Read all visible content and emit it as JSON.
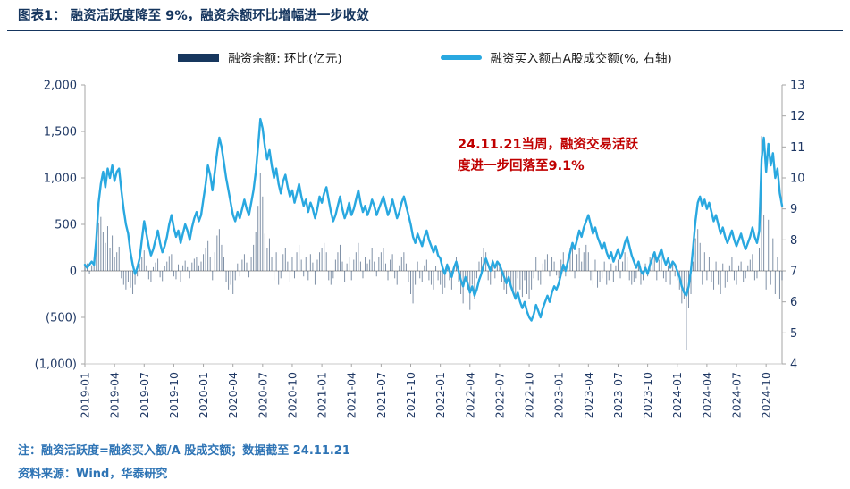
{
  "header": {
    "title": "图表1： 融资活跃度降至 9%，融资余额环比增幅进一步收敛"
  },
  "legend": [
    {
      "label": "融资余额: 环比(亿元)",
      "swatch": "bar",
      "color": "#17375e"
    },
    {
      "label": "融资买入额占A股成交额(%, 右轴)",
      "swatch": "line",
      "color": "#29a8e0"
    }
  ],
  "annotation": {
    "line1": "24.11.21当周，融资交易活跃",
    "line2": "度进一步回落至9.1%",
    "color": "#c00000"
  },
  "footnotes": {
    "note": "注：融资活跃度=融资买入额/A 股成交额；数据截至 24.11.21",
    "source": "资料来源：Wind，华泰研究"
  },
  "chart_data": {
    "type": "bar+line combo",
    "frequency": "weekly",
    "x_tick_interval": 13,
    "x_tick_labels": [
      "2019-01",
      "2019-04",
      "2019-07",
      "2019-10",
      "2020-01",
      "2020-04",
      "2020-07",
      "2020-10",
      "2021-01",
      "2021-04",
      "2021-07",
      "2021-10",
      "2022-01",
      "2022-04",
      "2022-07",
      "2022-10",
      "2023-01",
      "2023-04",
      "2023-07",
      "2023-10",
      "2024-01",
      "2024-04",
      "2024-07",
      "2024-10"
    ],
    "left_axis": {
      "min": -1000,
      "max": 2000,
      "tick_values": [
        2000,
        1500,
        1000,
        500,
        0,
        -500,
        -1000
      ],
      "tick_labels": [
        "2,000",
        "1,500",
        "1,000",
        "500",
        "0",
        "(500)",
        "(1,000)"
      ]
    },
    "right_axis": {
      "min": 4,
      "max": 13,
      "tick_values": [
        13,
        12,
        11,
        10,
        9,
        8,
        7,
        6,
        5,
        4
      ],
      "tick_labels": [
        "13",
        "12",
        "11",
        "10",
        "9",
        "8",
        "7",
        "6",
        "5",
        "4"
      ]
    },
    "series": [
      {
        "name": "融资余额: 环比(亿元)",
        "type": "bar",
        "axis": "left",
        "color": "#17375e",
        "values": [
          50,
          80,
          -30,
          60,
          120,
          350,
          520,
          580,
          420,
          300,
          480,
          250,
          380,
          150,
          200,
          260,
          -80,
          -150,
          -200,
          -120,
          -180,
          -250,
          -150,
          -60,
          80,
          150,
          220,
          60,
          -90,
          -120,
          40,
          90,
          130,
          -70,
          -110,
          50,
          100,
          160,
          180,
          -60,
          -90,
          70,
          -120,
          60,
          110,
          40,
          -80,
          90,
          130,
          150,
          60,
          100,
          180,
          250,
          320,
          150,
          -100,
          200,
          380,
          450,
          280,
          150,
          -120,
          -200,
          -150,
          -250,
          -100,
          80,
          -60,
          120,
          180,
          90,
          -70,
          150,
          280,
          420,
          700,
          1050,
          800,
          400,
          250,
          350,
          150,
          -100,
          200,
          -150,
          -80,
          180,
          250,
          100,
          -120,
          150,
          -80,
          200,
          280,
          120,
          -60,
          150,
          -100,
          180,
          90,
          -150,
          120,
          200,
          250,
          300,
          200,
          -100,
          -150,
          -80,
          120,
          200,
          280,
          100,
          -120,
          80,
          150,
          -100,
          120,
          200,
          300,
          100,
          -80,
          150,
          80,
          120,
          250,
          100,
          -60,
          150,
          200,
          250,
          80,
          -100,
          120,
          180,
          -80,
          -150,
          60,
          150,
          200,
          80,
          -120,
          -250,
          -350,
          -150,
          100,
          -80,
          -120,
          60,
          120,
          -100,
          -150,
          -200,
          50,
          -100,
          -150,
          -250,
          -180,
          80,
          -100,
          -200,
          60,
          150,
          -120,
          -250,
          -350,
          -100,
          -200,
          -420,
          -150,
          -300,
          -80,
          100,
          150,
          250,
          200,
          -100,
          -150,
          120,
          -80,
          100,
          60,
          -120,
          -200,
          -250,
          -100,
          -180,
          -250,
          -300,
          -80,
          -200,
          -280,
          -100,
          -250,
          -300,
          -200,
          -80,
          150,
          -100,
          -150,
          80,
          120,
          180,
          -60,
          150,
          100,
          -50,
          -80,
          120,
          200,
          -60,
          150,
          250,
          300,
          -80,
          180,
          250,
          100,
          200,
          280,
          200,
          -100,
          -150,
          120,
          -180,
          -120,
          -80,
          100,
          -150,
          -100,
          80,
          -120,
          60,
          120,
          -80,
          100,
          200,
          150,
          -100,
          -150,
          -120,
          -80,
          60,
          -150,
          -100,
          80,
          -60,
          150,
          180,
          200,
          -100,
          120,
          150,
          -80,
          -120,
          60,
          -150,
          80,
          -60,
          -100,
          -200,
          -350,
          -300,
          -850,
          -400,
          -250,
          100,
          350,
          450,
          300,
          -150,
          200,
          -100,
          150,
          -120,
          -200,
          100,
          -150,
          -250,
          80,
          -180,
          -120,
          60,
          150,
          -100,
          -150,
          60,
          100,
          -120,
          -80,
          60,
          120,
          180,
          -100,
          -80,
          250,
          1450,
          600,
          -200,
          550,
          -150,
          350,
          -250,
          150,
          -300,
          -100
        ]
      },
      {
        "name": "融资买入额占A股成交额(%, 右轴)",
        "type": "line",
        "axis": "right",
        "color": "#29a8e0",
        "values": [
          7.2,
          7.1,
          7.2,
          7.3,
          7.2,
          8.0,
          9.2,
          9.8,
          10.2,
          9.7,
          10.3,
          10.0,
          10.4,
          9.9,
          10.2,
          10.3,
          9.6,
          9.0,
          8.5,
          8.2,
          7.6,
          7.2,
          6.9,
          7.1,
          7.4,
          8.0,
          8.6,
          8.2,
          7.8,
          7.5,
          7.7,
          8.0,
          8.3,
          7.9,
          7.6,
          7.8,
          8.1,
          8.5,
          8.8,
          8.4,
          8.1,
          8.3,
          7.9,
          8.2,
          8.5,
          8.3,
          8.0,
          8.4,
          8.7,
          8.9,
          8.6,
          8.8,
          9.3,
          9.8,
          10.4,
          10.1,
          9.6,
          10.2,
          10.8,
          11.3,
          11.0,
          10.5,
          10.0,
          9.6,
          9.2,
          8.8,
          8.6,
          8.9,
          8.7,
          9.0,
          9.3,
          9.0,
          8.8,
          9.2,
          9.6,
          10.2,
          11.0,
          11.9,
          11.6,
          11.0,
          10.6,
          10.9,
          10.4,
          10.0,
          10.3,
          9.8,
          9.5,
          9.9,
          10.1,
          9.7,
          9.4,
          9.6,
          9.2,
          9.5,
          9.8,
          9.4,
          9.1,
          9.3,
          8.9,
          9.2,
          9.0,
          8.7,
          9.0,
          9.4,
          9.2,
          9.5,
          9.7,
          9.3,
          8.9,
          8.6,
          8.8,
          9.1,
          9.4,
          9.0,
          8.7,
          8.9,
          9.2,
          8.8,
          9.0,
          9.3,
          9.6,
          9.2,
          8.9,
          9.1,
          8.8,
          9.0,
          9.3,
          9.1,
          8.8,
          9.0,
          9.2,
          9.4,
          9.1,
          8.8,
          9.0,
          9.3,
          9.0,
          8.7,
          8.9,
          9.2,
          9.4,
          9.1,
          8.8,
          8.5,
          8.1,
          7.9,
          8.2,
          8.0,
          7.8,
          8.1,
          8.3,
          8.0,
          7.8,
          7.6,
          7.8,
          7.5,
          7.4,
          7.1,
          6.9,
          7.2,
          7.0,
          6.8,
          7.1,
          7.3,
          7.0,
          6.7,
          6.5,
          6.8,
          6.6,
          6.3,
          6.5,
          6.2,
          6.4,
          6.7,
          6.9,
          7.2,
          7.4,
          7.2,
          7.0,
          7.3,
          7.1,
          7.3,
          7.2,
          7.0,
          6.8,
          6.6,
          6.8,
          6.5,
          6.3,
          6.1,
          6.3,
          6.0,
          5.8,
          6.0,
          5.7,
          5.5,
          5.4,
          5.6,
          5.9,
          5.7,
          5.5,
          5.8,
          6.0,
          6.2,
          6.0,
          6.3,
          6.5,
          6.4,
          6.6,
          6.9,
          7.2,
          7.0,
          7.3,
          7.6,
          7.9,
          7.7,
          8.0,
          8.3,
          8.1,
          8.4,
          8.6,
          8.8,
          8.5,
          8.2,
          8.4,
          8.1,
          7.9,
          7.7,
          7.9,
          7.6,
          7.4,
          7.6,
          7.3,
          7.5,
          7.7,
          7.4,
          7.6,
          7.9,
          8.1,
          7.8,
          7.5,
          7.3,
          7.1,
          7.3,
          7.0,
          6.9,
          7.1,
          6.9,
          7.2,
          7.4,
          7.6,
          7.3,
          7.5,
          7.7,
          7.4,
          7.2,
          7.4,
          7.1,
          7.3,
          7.2,
          7.0,
          6.8,
          6.5,
          6.3,
          6.2,
          6.5,
          7.0,
          7.8,
          8.6,
          9.2,
          9.4,
          9.1,
          9.3,
          9.0,
          9.2,
          8.9,
          8.6,
          8.8,
          8.5,
          8.2,
          8.4,
          8.1,
          7.9,
          8.1,
          8.3,
          8.0,
          7.8,
          8.0,
          8.2,
          7.9,
          7.7,
          7.9,
          8.1,
          8.4,
          8.1,
          7.9,
          8.3,
          10.6,
          11.3,
          10.2,
          11.1,
          10.4,
          10.8,
          10.0,
          10.3,
          9.5,
          9.1
        ]
      }
    ]
  }
}
